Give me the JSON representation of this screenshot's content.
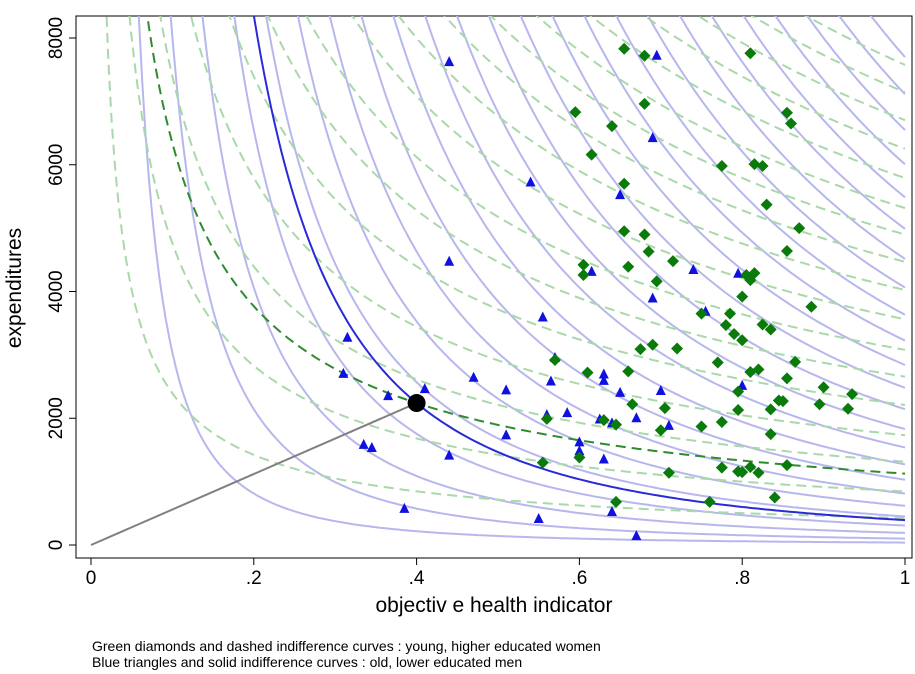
{
  "chart_data": {
    "type": "scatter",
    "title": "",
    "xlabel": "objectiv e health indicator",
    "ylabel": "expenditures",
    "xlim": [
      0,
      1
    ],
    "ylim": [
      0,
      8000
    ],
    "xticks": [
      0,
      0.2,
      0.4,
      0.6,
      0.8,
      1
    ],
    "xtick_labels": [
      "0",
      ".2",
      ".4",
      ".6",
      ".8",
      "1"
    ],
    "yticks": [
      0,
      2000,
      4000,
      6000,
      8000
    ],
    "ytick_labels": [
      "0",
      "2000",
      "4000",
      "6000",
      "8000"
    ],
    "grid": false,
    "series": [
      {
        "marker": "triangle",
        "color": "#1010e0",
        "points": [
          [
            0.31,
            2700
          ],
          [
            0.315,
            3270
          ],
          [
            0.335,
            1580
          ],
          [
            0.345,
            1530
          ],
          [
            0.365,
            2350
          ],
          [
            0.385,
            570
          ],
          [
            0.41,
            2460
          ],
          [
            0.44,
            7620
          ],
          [
            0.44,
            4470
          ],
          [
            0.44,
            1410
          ],
          [
            0.47,
            2640
          ],
          [
            0.51,
            2440
          ],
          [
            0.51,
            1730
          ],
          [
            0.54,
            5720
          ],
          [
            0.55,
            410
          ],
          [
            0.555,
            3590
          ],
          [
            0.56,
            2050
          ],
          [
            0.565,
            2580
          ],
          [
            0.57,
            2950
          ],
          [
            0.585,
            2080
          ],
          [
            0.6,
            1480
          ],
          [
            0.6,
            1620
          ],
          [
            0.615,
            4310
          ],
          [
            0.625,
            1980
          ],
          [
            0.63,
            2590
          ],
          [
            0.63,
            2690
          ],
          [
            0.63,
            1350
          ],
          [
            0.64,
            1920
          ],
          [
            0.64,
            520
          ],
          [
            0.65,
            5520
          ],
          [
            0.65,
            2400
          ],
          [
            0.67,
            2000
          ],
          [
            0.67,
            140
          ],
          [
            0.69,
            6420
          ],
          [
            0.69,
            3890
          ],
          [
            0.695,
            7720
          ],
          [
            0.7,
            2430
          ],
          [
            0.71,
            1880
          ],
          [
            0.74,
            4340
          ],
          [
            0.755,
            3680
          ],
          [
            0.795,
            4280
          ],
          [
            0.8,
            2510
          ]
        ]
      },
      {
        "marker": "diamond",
        "color": "#0a7a0a",
        "points": [
          [
            0.555,
            1300
          ],
          [
            0.56,
            1990
          ],
          [
            0.57,
            2920
          ],
          [
            0.595,
            6830
          ],
          [
            0.605,
            4420
          ],
          [
            0.605,
            4260
          ],
          [
            0.6,
            1380
          ],
          [
            0.61,
            2720
          ],
          [
            0.615,
            6160
          ],
          [
            0.63,
            1970
          ],
          [
            0.64,
            6610
          ],
          [
            0.645,
            1900
          ],
          [
            0.645,
            680
          ],
          [
            0.655,
            7830
          ],
          [
            0.655,
            5700
          ],
          [
            0.655,
            4950
          ],
          [
            0.66,
            4390
          ],
          [
            0.66,
            2740
          ],
          [
            0.665,
            2220
          ],
          [
            0.675,
            3090
          ],
          [
            0.68,
            7720
          ],
          [
            0.68,
            6960
          ],
          [
            0.68,
            4900
          ],
          [
            0.685,
            4630
          ],
          [
            0.69,
            3160
          ],
          [
            0.695,
            4160
          ],
          [
            0.7,
            1810
          ],
          [
            0.705,
            2160
          ],
          [
            0.71,
            1140
          ],
          [
            0.715,
            4480
          ],
          [
            0.72,
            3100
          ],
          [
            0.75,
            3650
          ],
          [
            0.75,
            1870
          ],
          [
            0.76,
            680
          ],
          [
            0.77,
            2880
          ],
          [
            0.775,
            5980
          ],
          [
            0.775,
            1940
          ],
          [
            0.775,
            1220
          ],
          [
            0.78,
            3470
          ],
          [
            0.785,
            3650
          ],
          [
            0.79,
            3330
          ],
          [
            0.795,
            2420
          ],
          [
            0.795,
            2130
          ],
          [
            0.795,
            1160
          ],
          [
            0.8,
            3920
          ],
          [
            0.8,
            3230
          ],
          [
            0.8,
            1150
          ],
          [
            0.805,
            4260
          ],
          [
            0.81,
            7760
          ],
          [
            0.81,
            4180
          ],
          [
            0.81,
            2730
          ],
          [
            0.81,
            1230
          ],
          [
            0.815,
            4290
          ],
          [
            0.815,
            6010
          ],
          [
            0.82,
            2770
          ],
          [
            0.82,
            1140
          ],
          [
            0.825,
            5980
          ],
          [
            0.825,
            3480
          ],
          [
            0.83,
            5370
          ],
          [
            0.835,
            2140
          ],
          [
            0.835,
            1750
          ],
          [
            0.835,
            3400
          ],
          [
            0.84,
            750
          ],
          [
            0.845,
            2280
          ],
          [
            0.85,
            2270
          ],
          [
            0.855,
            6820
          ],
          [
            0.855,
            4640
          ],
          [
            0.855,
            2630
          ],
          [
            0.855,
            1260
          ],
          [
            0.86,
            6650
          ],
          [
            0.865,
            2890
          ],
          [
            0.87,
            5000
          ],
          [
            0.885,
            3760
          ],
          [
            0.895,
            2220
          ],
          [
            0.9,
            2490
          ],
          [
            0.93,
            2150
          ],
          [
            0.935,
            2380
          ]
        ]
      }
    ],
    "highlight_point": [
      0.4,
      2240
    ],
    "footnote_line1": "Green diamonds and dashed indifference curves : young, higher educated women",
    "footnote_line2": "Blue triangles and solid indifference curves : old, lower educated men"
  }
}
